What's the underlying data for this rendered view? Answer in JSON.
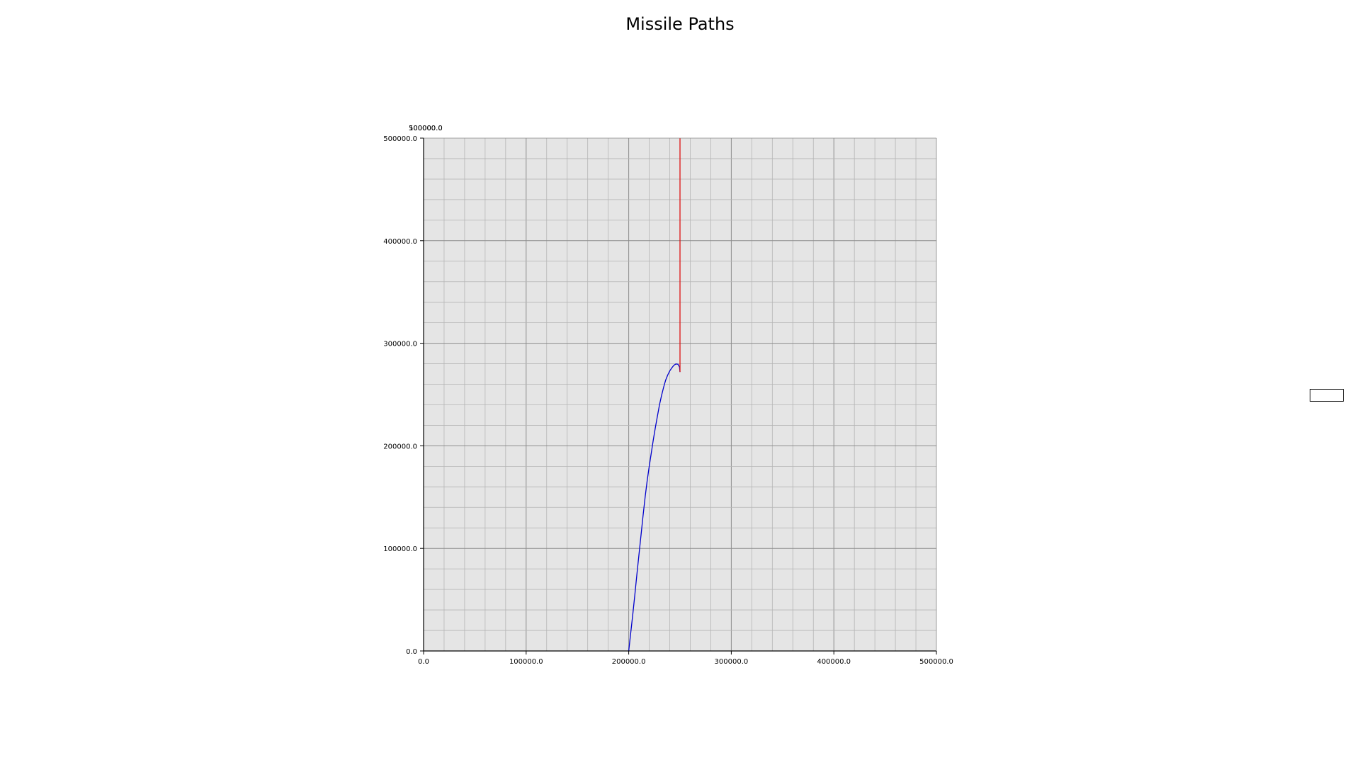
{
  "title": "Missile Paths",
  "chart_data": {
    "type": "line",
    "title": "Missile Paths",
    "xlabel": "",
    "ylabel": "",
    "xlim": [
      0,
      500000
    ],
    "ylim": [
      0,
      500000
    ],
    "grid": true,
    "x_ticks": [
      0,
      100000,
      200000,
      300000,
      400000,
      500000
    ],
    "y_ticks": [
      0,
      100000,
      200000,
      300000,
      400000,
      500000
    ],
    "x_tick_labels": [
      "0.0",
      "100000.0",
      "200000.0",
      "300000.0",
      "400000.0",
      "500000.0"
    ],
    "y_tick_labels": [
      "0.0",
      "100000.0",
      "200000.0",
      "300000.0",
      "400000.0",
      "500000.0"
    ],
    "top_labels": [
      "500000.0",
      "100000.0"
    ],
    "legend_placement": "right",
    "colors": {
      "plot_bg": "#e5e5e5",
      "grid_major": "#8c8c8c",
      "grid_minor": "#b5b5b5"
    },
    "series": [
      {
        "color": "#0000cc",
        "x": [
          200000,
          202000,
          204000,
          206000,
          208000,
          210000,
          212000,
          214000,
          216000,
          218000,
          220000,
          222000,
          224000,
          226000,
          228000,
          230000,
          232000,
          234000,
          236000,
          238000,
          240000,
          242000,
          244000,
          246000,
          248000,
          249500,
          250000
        ],
        "y": [
          0,
          18000,
          36000,
          55000,
          75000,
          94000,
          113000,
          132000,
          150000,
          166000,
          180000,
          193000,
          206000,
          218000,
          229000,
          240000,
          249000,
          257000,
          264000,
          269000,
          273000,
          276000,
          278500,
          279800,
          279500,
          277000,
          272000
        ]
      },
      {
        "color": "#dd1111",
        "x": [
          250000,
          250000
        ],
        "y": [
          500000,
          272000
        ]
      }
    ]
  }
}
